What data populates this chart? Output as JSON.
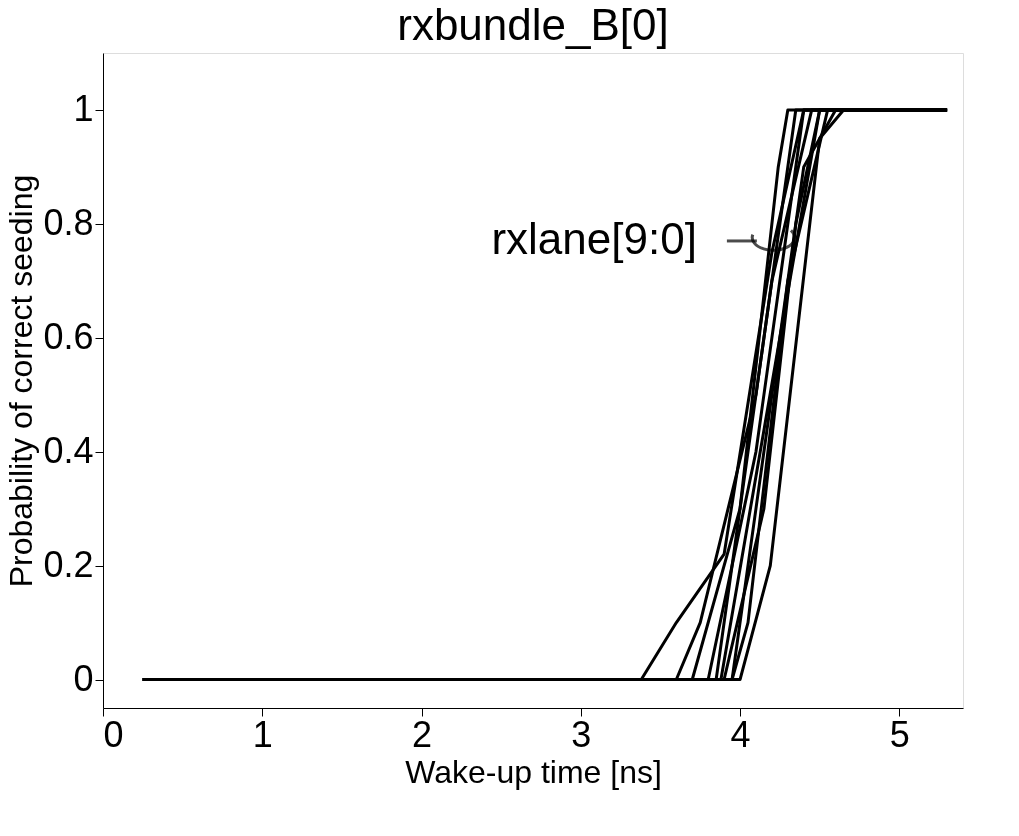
{
  "chart_data": {
    "type": "line",
    "title": "rxbundle_B[0]",
    "xlabel": "Wake-up time [ns]",
    "ylabel": "Probability of correct seeding",
    "xlim": [
      0,
      5.4
    ],
    "ylim": [
      -0.05,
      1.1
    ],
    "xticks": [
      0,
      1,
      2,
      3,
      4,
      5
    ],
    "yticks": [
      0,
      0.2,
      0.4,
      0.6,
      0.8,
      1
    ],
    "grid": false,
    "legend": false,
    "marker": "none",
    "line_style": "solid",
    "annotations": [
      {
        "text": "rxlane[9:0]",
        "x": 4.2,
        "y": 0.77
      }
    ],
    "series": [
      {
        "color": "#000000",
        "x": [
          0.25,
          3.38,
          3.6,
          3.9,
          4.2,
          4.4,
          5.3
        ],
        "values": [
          0,
          0,
          0.1,
          0.22,
          0.75,
          1,
          1
        ]
      },
      {
        "color": "#000000",
        "x": [
          0.25,
          3.6,
          3.75,
          4.1,
          4.35,
          5.3
        ],
        "values": [
          0,
          0,
          0.1,
          0.5,
          1,
          1
        ]
      },
      {
        "color": "#000000",
        "x": [
          0.25,
          3.7,
          4.0,
          4.24,
          4.3,
          5.3
        ],
        "values": [
          0,
          0,
          0.3,
          0.9,
          1,
          1
        ]
      },
      {
        "color": "#000000",
        "x": [
          0.25,
          3.8,
          4.1,
          4.4,
          5.3
        ],
        "values": [
          0,
          0,
          0.4,
          1,
          1
        ]
      },
      {
        "color": "#000000",
        "x": [
          0.25,
          3.85,
          4.2,
          4.45,
          5.3
        ],
        "values": [
          0,
          0,
          0.7,
          1,
          1
        ]
      },
      {
        "color": "#000000",
        "x": [
          0.25,
          3.9,
          4.15,
          4.35,
          4.5,
          5.3
        ],
        "values": [
          0,
          0,
          0.3,
          0.8,
          1,
          1
        ]
      },
      {
        "color": "#000000",
        "x": [
          0.25,
          3.95,
          4.05,
          4.3,
          4.55,
          5.3
        ],
        "values": [
          0,
          0,
          0.1,
          0.7,
          1,
          1
        ]
      },
      {
        "color": "#000000",
        "x": [
          0.25,
          4.0,
          4.19,
          4.5,
          4.65,
          5.3
        ],
        "values": [
          0,
          0,
          0.2,
          0.95,
          1,
          1
        ]
      },
      {
        "color": "#000000",
        "x": [
          0.25,
          3.95,
          4.1,
          4.4,
          4.6,
          5.3
        ],
        "values": [
          0,
          0,
          0.3,
          0.9,
          1,
          1
        ]
      },
      {
        "color": "#000000",
        "x": [
          0.25,
          3.88,
          4.25,
          4.5,
          5.3
        ],
        "values": [
          0,
          0,
          0.6,
          1,
          1
        ]
      }
    ]
  }
}
